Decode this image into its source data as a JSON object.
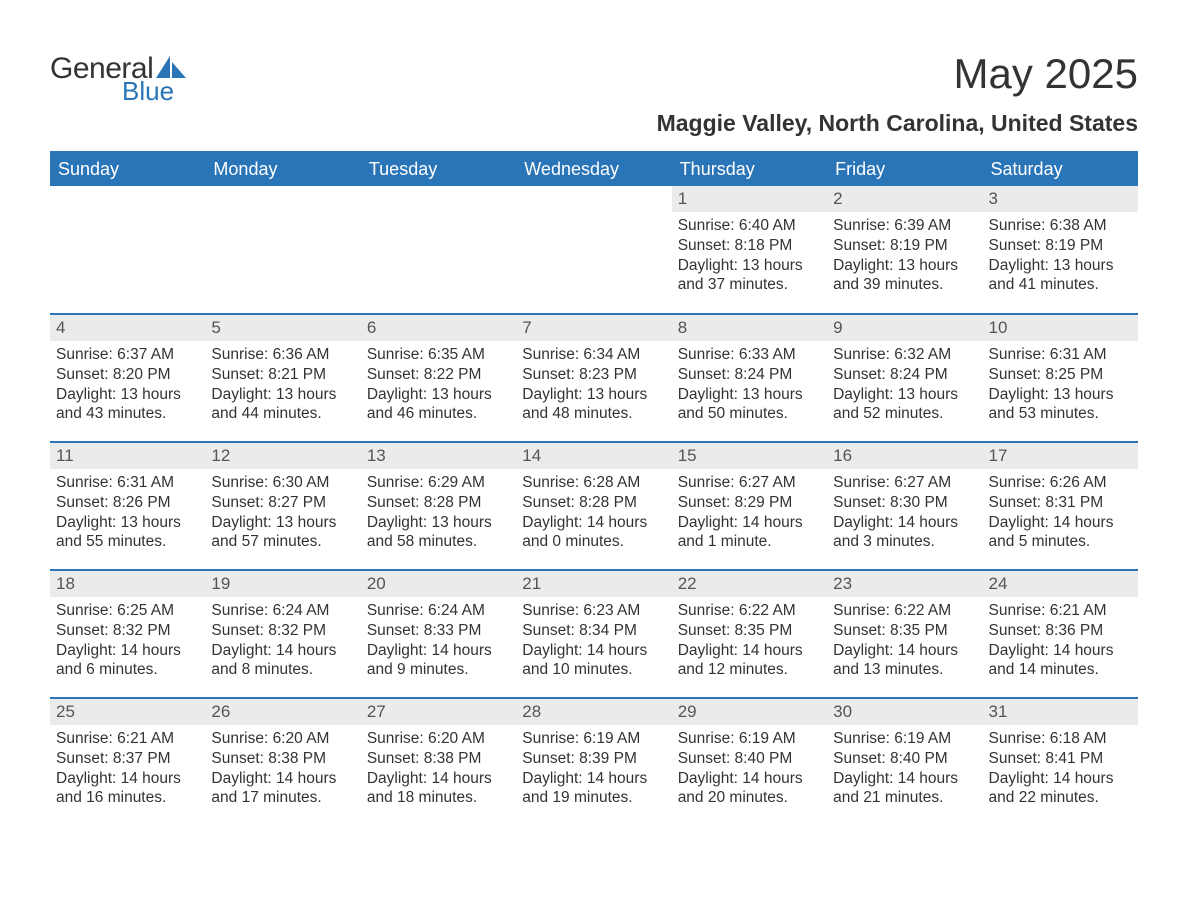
{
  "logo": {
    "text_general": "General",
    "text_blue": "Blue",
    "sail_color": "#2a74b8"
  },
  "title": "May 2025",
  "subtitle": "Maggie Valley, North Carolina, United States",
  "colors": {
    "header_bg": "#2a74b8",
    "header_text": "#ffffff",
    "daynum_bg": "#ebebeb",
    "daynum_text": "#555555",
    "body_text": "#333333",
    "row_divider": "#2a74b8",
    "background": "#ffffff"
  },
  "typography": {
    "title_fontsize": 42,
    "subtitle_fontsize": 23,
    "header_fontsize": 18,
    "daynum_fontsize": 17,
    "cell_fontsize": 15.5,
    "font_family": "Arial"
  },
  "table": {
    "columns": [
      "Sunday",
      "Monday",
      "Tuesday",
      "Wednesday",
      "Thursday",
      "Friday",
      "Saturday"
    ],
    "weeks": [
      [
        null,
        null,
        null,
        null,
        {
          "day": "1",
          "sunrise": "Sunrise: 6:40 AM",
          "sunset": "Sunset: 8:18 PM",
          "daylight": "Daylight: 13 hours and 37 minutes."
        },
        {
          "day": "2",
          "sunrise": "Sunrise: 6:39 AM",
          "sunset": "Sunset: 8:19 PM",
          "daylight": "Daylight: 13 hours and 39 minutes."
        },
        {
          "day": "3",
          "sunrise": "Sunrise: 6:38 AM",
          "sunset": "Sunset: 8:19 PM",
          "daylight": "Daylight: 13 hours and 41 minutes."
        }
      ],
      [
        {
          "day": "4",
          "sunrise": "Sunrise: 6:37 AM",
          "sunset": "Sunset: 8:20 PM",
          "daylight": "Daylight: 13 hours and 43 minutes."
        },
        {
          "day": "5",
          "sunrise": "Sunrise: 6:36 AM",
          "sunset": "Sunset: 8:21 PM",
          "daylight": "Daylight: 13 hours and 44 minutes."
        },
        {
          "day": "6",
          "sunrise": "Sunrise: 6:35 AM",
          "sunset": "Sunset: 8:22 PM",
          "daylight": "Daylight: 13 hours and 46 minutes."
        },
        {
          "day": "7",
          "sunrise": "Sunrise: 6:34 AM",
          "sunset": "Sunset: 8:23 PM",
          "daylight": "Daylight: 13 hours and 48 minutes."
        },
        {
          "day": "8",
          "sunrise": "Sunrise: 6:33 AM",
          "sunset": "Sunset: 8:24 PM",
          "daylight": "Daylight: 13 hours and 50 minutes."
        },
        {
          "day": "9",
          "sunrise": "Sunrise: 6:32 AM",
          "sunset": "Sunset: 8:24 PM",
          "daylight": "Daylight: 13 hours and 52 minutes."
        },
        {
          "day": "10",
          "sunrise": "Sunrise: 6:31 AM",
          "sunset": "Sunset: 8:25 PM",
          "daylight": "Daylight: 13 hours and 53 minutes."
        }
      ],
      [
        {
          "day": "11",
          "sunrise": "Sunrise: 6:31 AM",
          "sunset": "Sunset: 8:26 PM",
          "daylight": "Daylight: 13 hours and 55 minutes."
        },
        {
          "day": "12",
          "sunrise": "Sunrise: 6:30 AM",
          "sunset": "Sunset: 8:27 PM",
          "daylight": "Daylight: 13 hours and 57 minutes."
        },
        {
          "day": "13",
          "sunrise": "Sunrise: 6:29 AM",
          "sunset": "Sunset: 8:28 PM",
          "daylight": "Daylight: 13 hours and 58 minutes."
        },
        {
          "day": "14",
          "sunrise": "Sunrise: 6:28 AM",
          "sunset": "Sunset: 8:28 PM",
          "daylight": "Daylight: 14 hours and 0 minutes."
        },
        {
          "day": "15",
          "sunrise": "Sunrise: 6:27 AM",
          "sunset": "Sunset: 8:29 PM",
          "daylight": "Daylight: 14 hours and 1 minute."
        },
        {
          "day": "16",
          "sunrise": "Sunrise: 6:27 AM",
          "sunset": "Sunset: 8:30 PM",
          "daylight": "Daylight: 14 hours and 3 minutes."
        },
        {
          "day": "17",
          "sunrise": "Sunrise: 6:26 AM",
          "sunset": "Sunset: 8:31 PM",
          "daylight": "Daylight: 14 hours and 5 minutes."
        }
      ],
      [
        {
          "day": "18",
          "sunrise": "Sunrise: 6:25 AM",
          "sunset": "Sunset: 8:32 PM",
          "daylight": "Daylight: 14 hours and 6 minutes."
        },
        {
          "day": "19",
          "sunrise": "Sunrise: 6:24 AM",
          "sunset": "Sunset: 8:32 PM",
          "daylight": "Daylight: 14 hours and 8 minutes."
        },
        {
          "day": "20",
          "sunrise": "Sunrise: 6:24 AM",
          "sunset": "Sunset: 8:33 PM",
          "daylight": "Daylight: 14 hours and 9 minutes."
        },
        {
          "day": "21",
          "sunrise": "Sunrise: 6:23 AM",
          "sunset": "Sunset: 8:34 PM",
          "daylight": "Daylight: 14 hours and 10 minutes."
        },
        {
          "day": "22",
          "sunrise": "Sunrise: 6:22 AM",
          "sunset": "Sunset: 8:35 PM",
          "daylight": "Daylight: 14 hours and 12 minutes."
        },
        {
          "day": "23",
          "sunrise": "Sunrise: 6:22 AM",
          "sunset": "Sunset: 8:35 PM",
          "daylight": "Daylight: 14 hours and 13 minutes."
        },
        {
          "day": "24",
          "sunrise": "Sunrise: 6:21 AM",
          "sunset": "Sunset: 8:36 PM",
          "daylight": "Daylight: 14 hours and 14 minutes."
        }
      ],
      [
        {
          "day": "25",
          "sunrise": "Sunrise: 6:21 AM",
          "sunset": "Sunset: 8:37 PM",
          "daylight": "Daylight: 14 hours and 16 minutes."
        },
        {
          "day": "26",
          "sunrise": "Sunrise: 6:20 AM",
          "sunset": "Sunset: 8:38 PM",
          "daylight": "Daylight: 14 hours and 17 minutes."
        },
        {
          "day": "27",
          "sunrise": "Sunrise: 6:20 AM",
          "sunset": "Sunset: 8:38 PM",
          "daylight": "Daylight: 14 hours and 18 minutes."
        },
        {
          "day": "28",
          "sunrise": "Sunrise: 6:19 AM",
          "sunset": "Sunset: 8:39 PM",
          "daylight": "Daylight: 14 hours and 19 minutes."
        },
        {
          "day": "29",
          "sunrise": "Sunrise: 6:19 AM",
          "sunset": "Sunset: 8:40 PM",
          "daylight": "Daylight: 14 hours and 20 minutes."
        },
        {
          "day": "30",
          "sunrise": "Sunrise: 6:19 AM",
          "sunset": "Sunset: 8:40 PM",
          "daylight": "Daylight: 14 hours and 21 minutes."
        },
        {
          "day": "31",
          "sunrise": "Sunrise: 6:18 AM",
          "sunset": "Sunset: 8:41 PM",
          "daylight": "Daylight: 14 hours and 22 minutes."
        }
      ]
    ]
  }
}
